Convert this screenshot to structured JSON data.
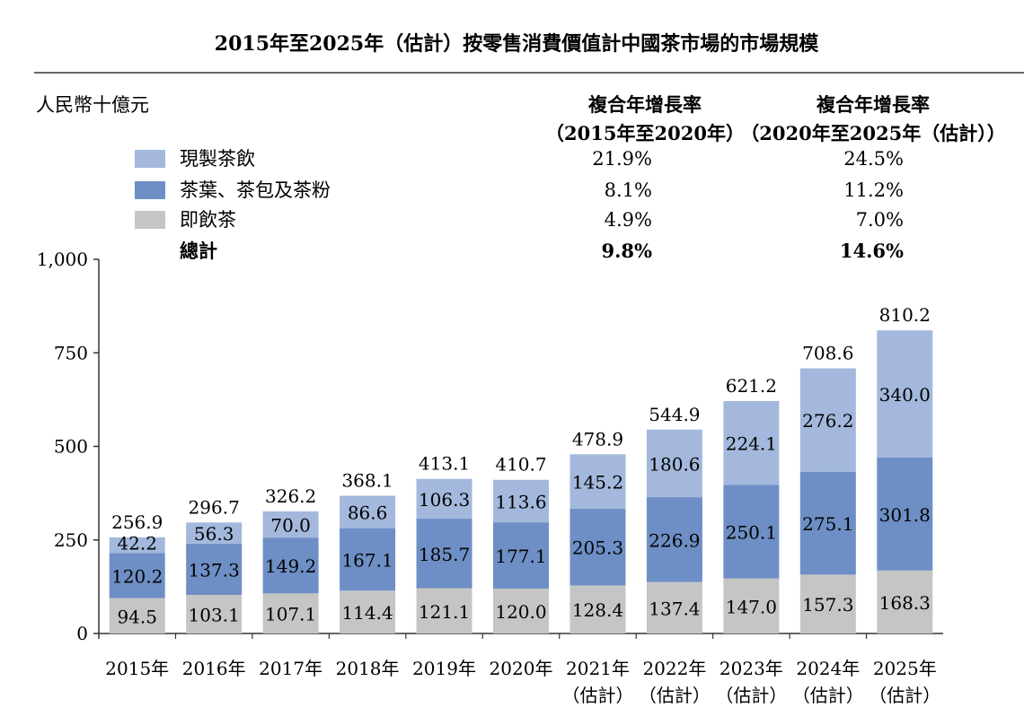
{
  "chart_data": {
    "type": "bar",
    "stacked": true,
    "title": "2015年至2025年（估計）按零售消費價值計中國茶市場的市場規模",
    "ylabel": "人民幣十億元",
    "ylim": [
      0,
      1000
    ],
    "yticks": [
      "0",
      "250",
      "500",
      "750",
      "1,000"
    ],
    "ytick_values": [
      0,
      250,
      500,
      750,
      1000
    ],
    "categories": [
      {
        "year": "2015年",
        "note": ""
      },
      {
        "year": "2016年",
        "note": ""
      },
      {
        "year": "2017年",
        "note": ""
      },
      {
        "year": "2018年",
        "note": ""
      },
      {
        "year": "2019年",
        "note": ""
      },
      {
        "year": "2020年",
        "note": ""
      },
      {
        "year": "2021年",
        "note": "（估計）"
      },
      {
        "year": "2022年",
        "note": "（估計）"
      },
      {
        "year": "2023年",
        "note": "（估計）"
      },
      {
        "year": "2024年",
        "note": "（估計）"
      },
      {
        "year": "2025年",
        "note": "（估計）"
      }
    ],
    "series": [
      {
        "name": "即飲茶",
        "color": "#c6c5c6",
        "values": [
          94.5,
          103.1,
          107.1,
          114.4,
          121.1,
          120.0,
          128.4,
          137.4,
          147.0,
          157.3,
          168.3
        ],
        "labels": [
          "94.5",
          "103.1",
          "107.1",
          "114.4",
          "121.1",
          "120.0",
          "128.4",
          "137.4",
          "147.0",
          "157.3",
          "168.3"
        ]
      },
      {
        "name": "茶葉、茶包及茶粉",
        "color": "#6e8fc5",
        "values": [
          120.2,
          137.3,
          149.2,
          167.1,
          185.7,
          177.1,
          205.3,
          226.9,
          250.1,
          275.1,
          301.8
        ],
        "labels": [
          "120.2",
          "137.3",
          "149.2",
          "167.1",
          "185.7",
          "177.1",
          "205.3",
          "226.9",
          "250.1",
          "275.1",
          "301.8"
        ]
      },
      {
        "name": "現製茶飲",
        "color": "#a3b8dc",
        "values": [
          42.2,
          56.3,
          70.0,
          86.6,
          106.3,
          113.6,
          145.2,
          180.6,
          224.1,
          276.2,
          340.0
        ],
        "labels": [
          "42.2",
          "56.3",
          "70.0",
          "86.6",
          "106.3",
          "113.6",
          "145.2",
          "180.6",
          "224.1",
          "276.2",
          "340.0"
        ]
      }
    ],
    "totals": [
      256.9,
      296.7,
      326.2,
      368.1,
      413.1,
      410.7,
      478.9,
      544.9,
      621.2,
      708.6,
      810.2
    ],
    "total_labels": [
      "256.9",
      "296.7",
      "326.2",
      "368.1",
      "413.1",
      "410.7",
      "478.9",
      "544.9",
      "621.2",
      "708.6",
      "810.2"
    ]
  },
  "cagr_table": {
    "headers": [
      {
        "line1": "複合年增長率",
        "line2": "（2015年至2020年）"
      },
      {
        "line1": "複合年增長率",
        "line2": "（2020年至2025年（估計））"
      }
    ],
    "rows": [
      {
        "label": "現製茶飲",
        "color": "#a3b8dc",
        "bold": false,
        "v1": "21.9%",
        "v2": "24.5%"
      },
      {
        "label": "茶葉、茶包及茶粉",
        "color": "#6e8fc5",
        "bold": false,
        "v1": "8.1%",
        "v2": "11.2%"
      },
      {
        "label": "即飲茶",
        "color": "#c6c5c6",
        "bold": false,
        "v1": "4.9%",
        "v2": "7.0%"
      },
      {
        "label": "總計",
        "color": "",
        "bold": true,
        "v1": "9.8%",
        "v2": "14.6%"
      }
    ]
  }
}
